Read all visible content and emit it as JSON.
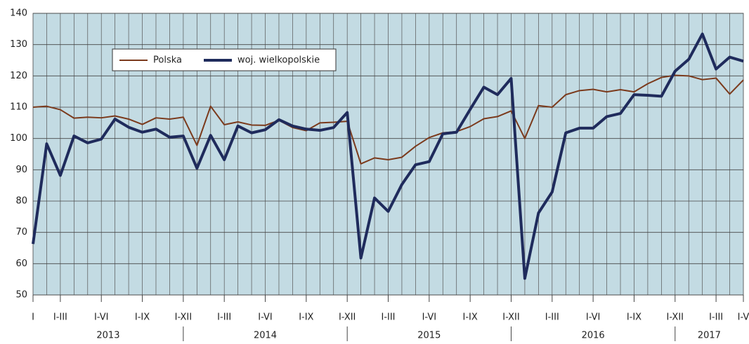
{
  "chart_data": {
    "type": "line",
    "categories": [
      "I",
      null,
      "I-III",
      null,
      null,
      "I-VI",
      null,
      null,
      "I-IX",
      null,
      null,
      "I-XII",
      null,
      null,
      "I-III",
      null,
      null,
      "I-VI",
      null,
      null,
      "I-IX",
      null,
      null,
      "I-XII",
      null,
      null,
      "I-III",
      null,
      null,
      "I-VI",
      null,
      null,
      "I-IX",
      null,
      null,
      "I-XII",
      null,
      null,
      "I-III",
      null,
      null,
      "I-VI",
      null,
      null,
      "I-IX",
      null,
      null,
      "I-XII",
      null,
      null,
      "I-III",
      null,
      "I-V"
    ],
    "years": [
      "2013",
      "2014",
      "2015",
      "2016",
      "2017"
    ],
    "series": [
      {
        "name": "Polska",
        "color": "#7b3a1c",
        "values": [
          110,
          110.3,
          109.2,
          106.5,
          106.8,
          106.6,
          107.2,
          106.2,
          104.5,
          106.6,
          106.2,
          106.8,
          97.8,
          110.3,
          104.4,
          105.3,
          104.3,
          104.2,
          105.8,
          103.5,
          102.5,
          105,
          105.2,
          105.5,
          91.9,
          93.8,
          93.2,
          94,
          97.5,
          100.3,
          101.8,
          102.2,
          103.8,
          106.3,
          107,
          108.8,
          100,
          110.5,
          110,
          114,
          115.3,
          115.7,
          114.9,
          115.6,
          114.9,
          117.5,
          119.5,
          120.2,
          120,
          118.8,
          119.3,
          114.2,
          118.7
        ]
      },
      {
        "name": "woj. wielkopolskie",
        "color": "#1f2b5c",
        "values": [
          66.3,
          98.3,
          88.2,
          100.8,
          98.6,
          99.8,
          106.2,
          103.6,
          102,
          103,
          100.4,
          100.8,
          90.5,
          101,
          93.2,
          104,
          101.8,
          102.8,
          106,
          104,
          103,
          102.6,
          103.5,
          108.3,
          61.8,
          81,
          76.7,
          85.3,
          91.6,
          92.6,
          101.5,
          102,
          109.3,
          116.4,
          114,
          119.2,
          55.3,
          76.2,
          82.9,
          101.8,
          103.3,
          103.3,
          107,
          108,
          114,
          113.8,
          113.5,
          121.5,
          125.3,
          133.4,
          122.2,
          126,
          124.7
        ]
      }
    ],
    "ylim": [
      50,
      140
    ],
    "yticks": [
      50,
      60,
      70,
      80,
      90,
      100,
      110,
      120,
      130,
      140
    ],
    "grid": true
  }
}
